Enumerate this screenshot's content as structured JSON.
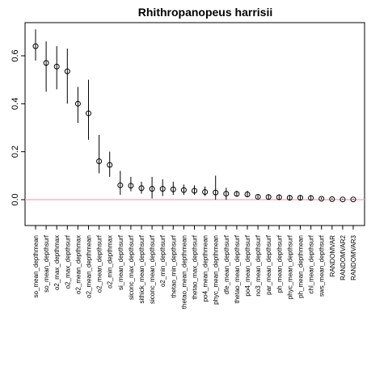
{
  "chart_data": {
    "type": "scatter",
    "title": "Rhithropanopeus harrisii",
    "xlabel": "",
    "ylabel": "",
    "ylim": [
      -0.1,
      0.73
    ],
    "y_ticks": [
      "0.0",
      "0.2",
      "0.4",
      "0.6"
    ],
    "y_tick_values": [
      0.0,
      0.2,
      0.4,
      0.6
    ],
    "reference_line": {
      "y": 0.0,
      "color": "#f4a6b4"
    },
    "point_style": "open-circle with vertical error bar",
    "grid": false,
    "categories": [
      "so_mean_depthmean",
      "so_mean_depthsurf",
      "o2_max_depthmax",
      "o2_max_depthsurf",
      "o2_mean_depthmax",
      "o2_mean_depthmean",
      "o2_mean_depthsurf",
      "o2_min_depthmax",
      "si_mean_depthsurf",
      "siconc_max_depthsurf",
      "sithick_mean_depthsurf",
      "siconc_mean_depthsurf",
      "o2_min_depthsurf",
      "thetao_min_depthsurf",
      "thetao_mean_depthmean",
      "thetao_max_depthsurf",
      "po4_mean_depthmean",
      "phyc_mean_depthmean",
      "dfe_mean_depthsurf",
      "thetao_mean_depthsurf",
      "po4_mean_depthsurf",
      "no3_mean_depthsurf",
      "par_mean_depthsurf",
      "ph_mean_depthsurf",
      "phyc_mean_depthsurf",
      "ph_mean_depthmean",
      "chl_mean_depthsurf",
      "sws_mean_depthsurf",
      "RANDOMVAR",
      "RANDOMVAR2",
      "RANDOMVAR3"
    ],
    "values": [
      0.64,
      0.57,
      0.555,
      0.535,
      0.4,
      0.36,
      0.16,
      0.145,
      0.06,
      0.058,
      0.048,
      0.045,
      0.045,
      0.043,
      0.04,
      0.037,
      0.032,
      0.03,
      0.025,
      0.024,
      0.022,
      0.012,
      0.011,
      0.01,
      0.008,
      0.008,
      0.007,
      0.004,
      0.002,
      0.001,
      0.001
    ],
    "lower": [
      0.58,
      0.45,
      0.46,
      0.4,
      0.32,
      0.25,
      0.11,
      0.095,
      0.02,
      0.035,
      0.025,
      0.005,
      0.015,
      0.02,
      0.02,
      0.02,
      0.015,
      0.0,
      0.0,
      0.012,
      0.01,
      0.005,
      0.003,
      0.0,
      0.0,
      0.0,
      0.0,
      0.0,
      0.0,
      0.0,
      0.0
    ],
    "upper": [
      0.71,
      0.66,
      0.64,
      0.63,
      0.47,
      0.5,
      0.27,
      0.2,
      0.12,
      0.095,
      0.075,
      0.095,
      0.085,
      0.075,
      0.063,
      0.06,
      0.055,
      0.1,
      0.05,
      0.037,
      0.037,
      0.02,
      0.02,
      0.022,
      0.018,
      0.017,
      0.017,
      0.01,
      0.006,
      0.004,
      0.004
    ]
  }
}
